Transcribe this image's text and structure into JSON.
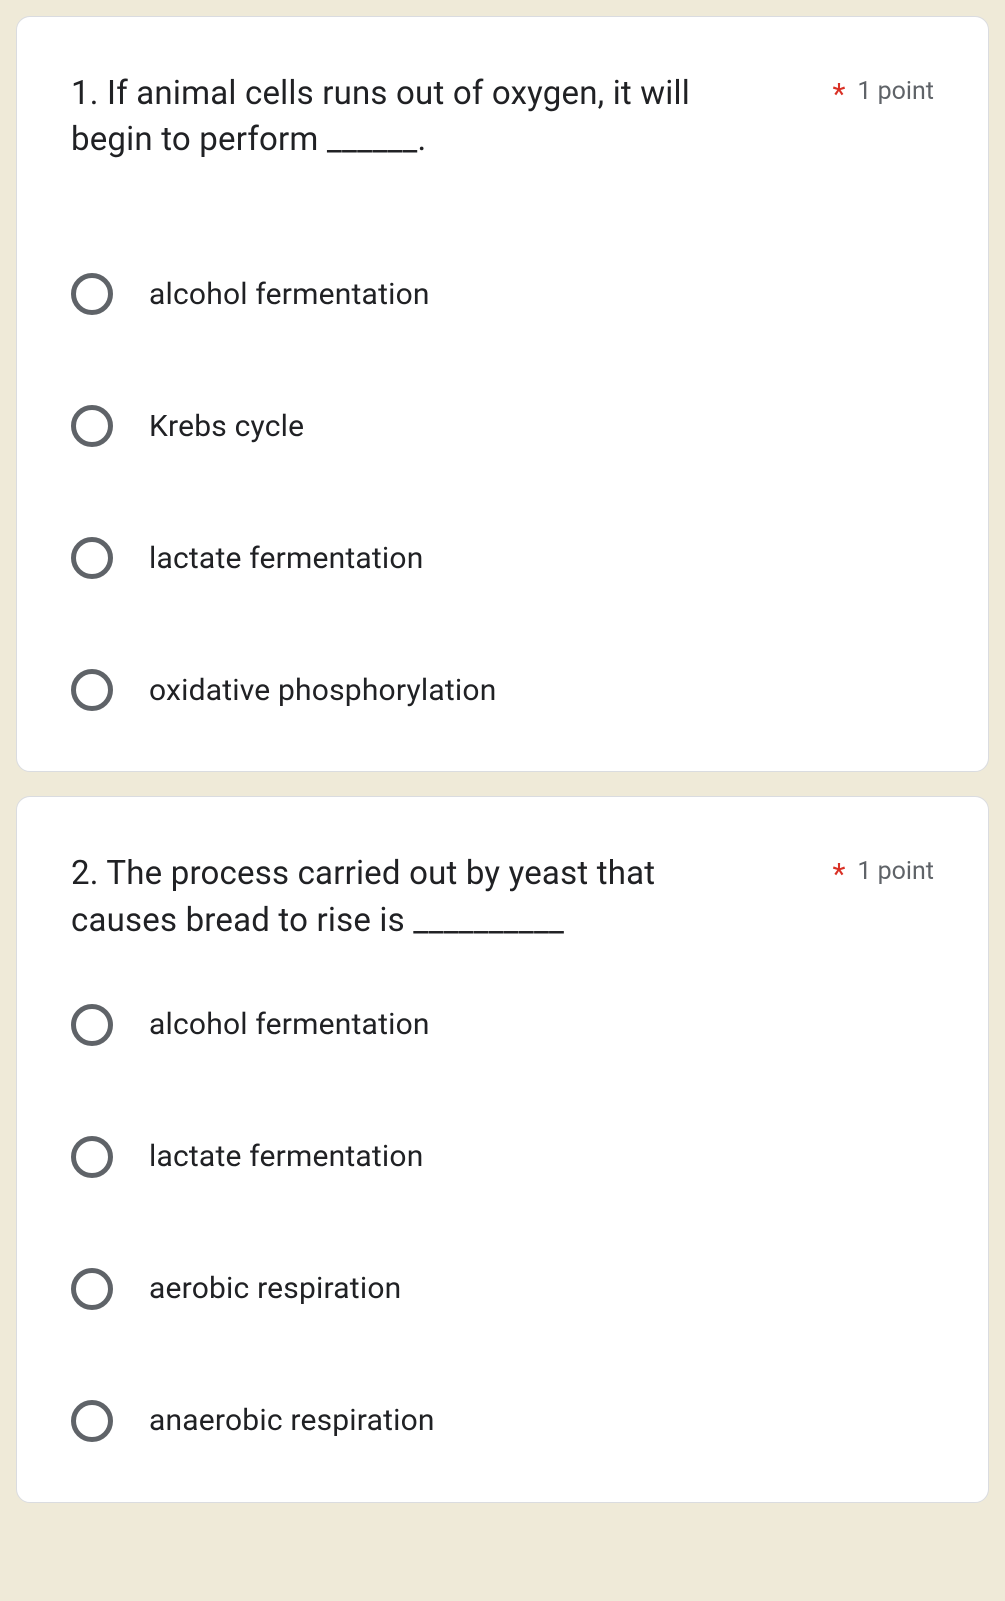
{
  "questions": [
    {
      "number": "1. ",
      "prompt": "If animal cells runs out of oxygen, it will begin to perform ______.",
      "required_marker": "*",
      "points": "1 point",
      "options": [
        {
          "label": "alcohol fermentation"
        },
        {
          "label": "Krebs cycle"
        },
        {
          "label": "lactate fermentation"
        },
        {
          "label": "oxidative phosphorylation"
        }
      ]
    },
    {
      "number": "2. ",
      "prompt": "The process carried out by yeast that causes bread to rise is __________",
      "required_marker": "*",
      "points": "1 point",
      "options": [
        {
          "label": "alcohol fermentation"
        },
        {
          "label": "lactate fermentation"
        },
        {
          "label": "aerobic respiration"
        },
        {
          "label": "anaerobic respiration"
        }
      ]
    }
  ],
  "colors": {
    "page_bg": "#efead8",
    "card_bg": "#ffffff",
    "card_border": "#dadce0",
    "text_primary": "#202124",
    "text_secondary": "#5f6368",
    "required": "#d93025",
    "radio_border": "#5f6368"
  }
}
